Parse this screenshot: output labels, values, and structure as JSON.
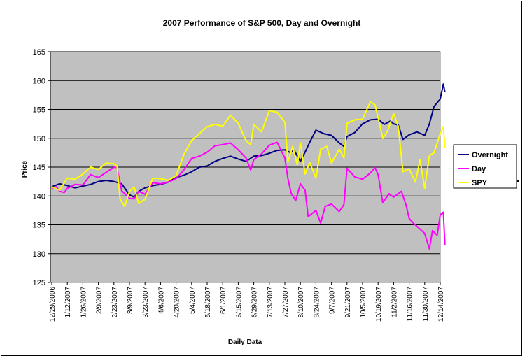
{
  "chart_data": {
    "type": "line",
    "title": "2007 Performance of S&P 500, Day and Overnight",
    "xlabel": "Daily Data",
    "ylabel": "Price",
    "ylim": [
      125,
      165
    ],
    "y_ticks": [
      125,
      130,
      135,
      140,
      145,
      150,
      155,
      160,
      165
    ],
    "grid": "horizontal",
    "legend_position": "right",
    "plot_background": "#C0C0C0",
    "x_tick_labels": [
      "12/29/2006",
      "1/12/2007",
      "1/26/2007",
      "2/9/2007",
      "2/23/2007",
      "3/9/2007",
      "3/23/2007",
      "4/6/2007",
      "4/20/2007",
      "5/4/2007",
      "5/18/2007",
      "6/1/2007",
      "6/15/2007",
      "6/29/2007",
      "7/13/2007",
      "7/27/2007",
      "8/10/2007",
      "8/24/2007",
      "9/7/2007",
      "9/21/2007",
      "10/5/2007",
      "10/19/2007",
      "11/2/2007",
      "11/16/2007",
      "11/30/2007",
      "12/14/2007"
    ],
    "x_range": [
      0,
      25.3
    ],
    "series": [
      {
        "name": "Overnight",
        "color": "#000080",
        "points": [
          [
            0,
            141.6
          ],
          [
            0.5,
            142.1
          ],
          [
            1,
            141.8
          ],
          [
            1.5,
            141.4
          ],
          [
            2,
            141.7
          ],
          [
            2.5,
            142
          ],
          [
            3,
            142.5
          ],
          [
            3.5,
            142.7
          ],
          [
            4,
            142.5
          ],
          [
            4.5,
            142.1
          ],
          [
            5,
            140.2
          ],
          [
            5.3,
            139.8
          ],
          [
            5.6,
            140.8
          ],
          [
            6,
            141.4
          ],
          [
            6.5,
            141.8
          ],
          [
            7,
            142
          ],
          [
            7.5,
            142.4
          ],
          [
            8,
            143.2
          ],
          [
            8.5,
            143.6
          ],
          [
            9,
            144.2
          ],
          [
            9.5,
            145
          ],
          [
            10,
            145.2
          ],
          [
            10.5,
            146
          ],
          [
            11,
            146.5
          ],
          [
            11.5,
            146.9
          ],
          [
            12,
            146.4
          ],
          [
            12.5,
            146
          ],
          [
            13,
            146.9
          ],
          [
            13.5,
            147
          ],
          [
            14,
            147.4
          ],
          [
            14.5,
            147.9
          ],
          [
            15,
            148
          ],
          [
            15.3,
            147.6
          ],
          [
            15.6,
            147.9
          ],
          [
            16,
            146
          ],
          [
            16.3,
            147.6
          ],
          [
            16.6,
            149.3
          ],
          [
            17,
            151.4
          ],
          [
            17.5,
            150.8
          ],
          [
            18,
            150.5
          ],
          [
            18.5,
            149.2
          ],
          [
            18.8,
            148.6
          ],
          [
            19,
            150.3
          ],
          [
            19.5,
            151
          ],
          [
            20,
            152.5
          ],
          [
            20.5,
            153.2
          ],
          [
            21,
            153.3
          ],
          [
            21.4,
            152.4
          ],
          [
            21.8,
            153
          ],
          [
            22,
            152.5
          ],
          [
            22.3,
            152.3
          ],
          [
            22.6,
            149.8
          ],
          [
            23,
            150.6
          ],
          [
            23.5,
            151.1
          ],
          [
            24,
            150.5
          ],
          [
            24.3,
            152.5
          ],
          [
            24.6,
            155.5
          ],
          [
            25,
            156.8
          ],
          [
            25.2,
            159.4
          ],
          [
            25.3,
            158
          ]
        ]
      },
      {
        "name": "Day",
        "color": "#FF00FF",
        "points": [
          [
            0,
            141.3
          ],
          [
            0.3,
            141.6
          ],
          [
            0.5,
            140.8
          ],
          [
            0.8,
            140.6
          ],
          [
            1,
            141.3
          ],
          [
            1.5,
            142
          ],
          [
            2,
            141.9
          ],
          [
            2.5,
            143.7
          ],
          [
            3,
            143.2
          ],
          [
            3.5,
            144.1
          ],
          [
            4,
            145
          ],
          [
            4.2,
            144.9
          ],
          [
            4.5,
            140.9
          ],
          [
            5,
            139.6
          ],
          [
            5.3,
            139.5
          ],
          [
            5.6,
            140.8
          ],
          [
            6,
            140.3
          ],
          [
            6.5,
            142.3
          ],
          [
            7,
            142.1
          ],
          [
            7.5,
            142.4
          ],
          [
            8,
            143
          ],
          [
            8.5,
            144.5
          ],
          [
            9,
            146.5
          ],
          [
            9.5,
            146.9
          ],
          [
            10,
            147.6
          ],
          [
            10.5,
            148.7
          ],
          [
            11,
            148.9
          ],
          [
            11.5,
            149.2
          ],
          [
            12,
            148
          ],
          [
            12.5,
            146.6
          ],
          [
            12.8,
            144.5
          ],
          [
            13,
            146.3
          ],
          [
            13.5,
            147.3
          ],
          [
            14,
            148.8
          ],
          [
            14.5,
            149.3
          ],
          [
            15,
            146.6
          ],
          [
            15.2,
            143
          ],
          [
            15.4,
            140.5
          ],
          [
            15.7,
            139.2
          ],
          [
            16,
            142.1
          ],
          [
            16.3,
            141
          ],
          [
            16.5,
            136.4
          ],
          [
            17,
            137.5
          ],
          [
            17.3,
            135.3
          ],
          [
            17.6,
            138.2
          ],
          [
            18,
            138.6
          ],
          [
            18.5,
            137.3
          ],
          [
            18.8,
            138.5
          ],
          [
            19,
            144.8
          ],
          [
            19.5,
            143.3
          ],
          [
            20,
            142.9
          ],
          [
            20.5,
            144
          ],
          [
            20.8,
            144.9
          ],
          [
            21,
            143.7
          ],
          [
            21.3,
            138.8
          ],
          [
            21.7,
            140.4
          ],
          [
            22,
            139.8
          ],
          [
            22.5,
            140.8
          ],
          [
            22.8,
            138.4
          ],
          [
            23,
            136.1
          ],
          [
            23.3,
            135.2
          ],
          [
            23.6,
            134.5
          ],
          [
            24,
            133.5
          ],
          [
            24.3,
            130.8
          ],
          [
            24.5,
            134
          ],
          [
            24.8,
            133.2
          ],
          [
            25,
            136.7
          ],
          [
            25.2,
            137.2
          ],
          [
            25.3,
            131.5
          ]
        ]
      },
      {
        "name": "SPY",
        "color": "#FFFF00",
        "points": [
          [
            0,
            141.6
          ],
          [
            0.5,
            141
          ],
          [
            1,
            143.1
          ],
          [
            1.5,
            142.9
          ],
          [
            2,
            143.8
          ],
          [
            2.5,
            145
          ],
          [
            3,
            144.6
          ],
          [
            3.5,
            145.7
          ],
          [
            4,
            145.6
          ],
          [
            4.2,
            145.2
          ],
          [
            4.4,
            139.4
          ],
          [
            4.7,
            138.2
          ],
          [
            5,
            140.8
          ],
          [
            5.3,
            141.5
          ],
          [
            5.6,
            138.7
          ],
          [
            6,
            139.4
          ],
          [
            6.5,
            143.1
          ],
          [
            7,
            143
          ],
          [
            7.5,
            142.7
          ],
          [
            8,
            143.5
          ],
          [
            8.5,
            147.2
          ],
          [
            9,
            149.6
          ],
          [
            9.5,
            150.8
          ],
          [
            10,
            152
          ],
          [
            10.5,
            152.4
          ],
          [
            11,
            152.1
          ],
          [
            11.5,
            154
          ],
          [
            12,
            152.6
          ],
          [
            12.5,
            149.6
          ],
          [
            12.8,
            148.9
          ],
          [
            13,
            152.4
          ],
          [
            13.5,
            151.1
          ],
          [
            14,
            154.8
          ],
          [
            14.5,
            154.5
          ],
          [
            15,
            152.8
          ],
          [
            15.2,
            145.9
          ],
          [
            15.5,
            148.6
          ],
          [
            15.8,
            145.4
          ],
          [
            16,
            149.2
          ],
          [
            16.3,
            143.8
          ],
          [
            16.6,
            145.8
          ],
          [
            17,
            143.1
          ],
          [
            17.3,
            148.1
          ],
          [
            17.7,
            148.6
          ],
          [
            18,
            145.7
          ],
          [
            18.5,
            148.1
          ],
          [
            18.8,
            146.6
          ],
          [
            19,
            152.6
          ],
          [
            19.5,
            153.2
          ],
          [
            20,
            153.3
          ],
          [
            20.5,
            156.3
          ],
          [
            20.8,
            155.8
          ],
          [
            21,
            153.6
          ],
          [
            21.3,
            150
          ],
          [
            21.6,
            151.2
          ],
          [
            22,
            154.3
          ],
          [
            22.3,
            152
          ],
          [
            22.6,
            144.2
          ],
          [
            23,
            144.7
          ],
          [
            23.4,
            142.4
          ],
          [
            23.7,
            146.3
          ],
          [
            24,
            141.3
          ],
          [
            24.3,
            147
          ],
          [
            24.6,
            147.5
          ],
          [
            25,
            150.8
          ],
          [
            25.2,
            152
          ],
          [
            25.3,
            148.3
          ]
        ]
      }
    ]
  }
}
